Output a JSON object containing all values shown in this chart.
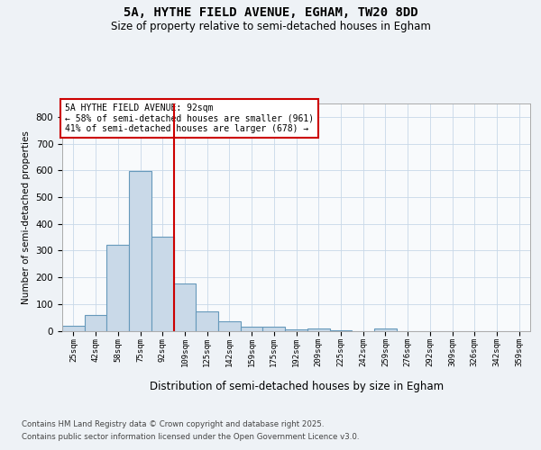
{
  "title1": "5A, HYTHE FIELD AVENUE, EGHAM, TW20 8DD",
  "title2": "Size of property relative to semi-detached houses in Egham",
  "xlabel": "Distribution of semi-detached houses by size in Egham",
  "ylabel": "Number of semi-detached properties",
  "categories": [
    "25sqm",
    "42sqm",
    "58sqm",
    "75sqm",
    "92sqm",
    "109sqm",
    "125sqm",
    "142sqm",
    "159sqm",
    "175sqm",
    "192sqm",
    "209sqm",
    "225sqm",
    "242sqm",
    "259sqm",
    "276sqm",
    "292sqm",
    "309sqm",
    "326sqm",
    "342sqm",
    "359sqm"
  ],
  "values": [
    18,
    60,
    322,
    596,
    352,
    178,
    73,
    37,
    16,
    14,
    4,
    7,
    1,
    0,
    10,
    0,
    0,
    0,
    0,
    0,
    0
  ],
  "bar_color": "#c9d9e8",
  "bar_edge_color": "#6699bb",
  "bar_linewidth": 0.8,
  "vline_x": 4.5,
  "vline_color": "#cc0000",
  "annotation_title": "5A HYTHE FIELD AVENUE: 92sqm",
  "annotation_line1": "← 58% of semi-detached houses are smaller (961)",
  "annotation_line2": "41% of semi-detached houses are larger (678) →",
  "annotation_box_color": "#cc0000",
  "ylim": [
    0,
    850
  ],
  "yticks": [
    0,
    100,
    200,
    300,
    400,
    500,
    600,
    700,
    800
  ],
  "footnote1": "Contains HM Land Registry data © Crown copyright and database right 2025.",
  "footnote2": "Contains public sector information licensed under the Open Government Licence v3.0.",
  "bg_color": "#eef2f6",
  "plot_bg_color": "#f8fafc",
  "grid_color": "#c8d8e8"
}
